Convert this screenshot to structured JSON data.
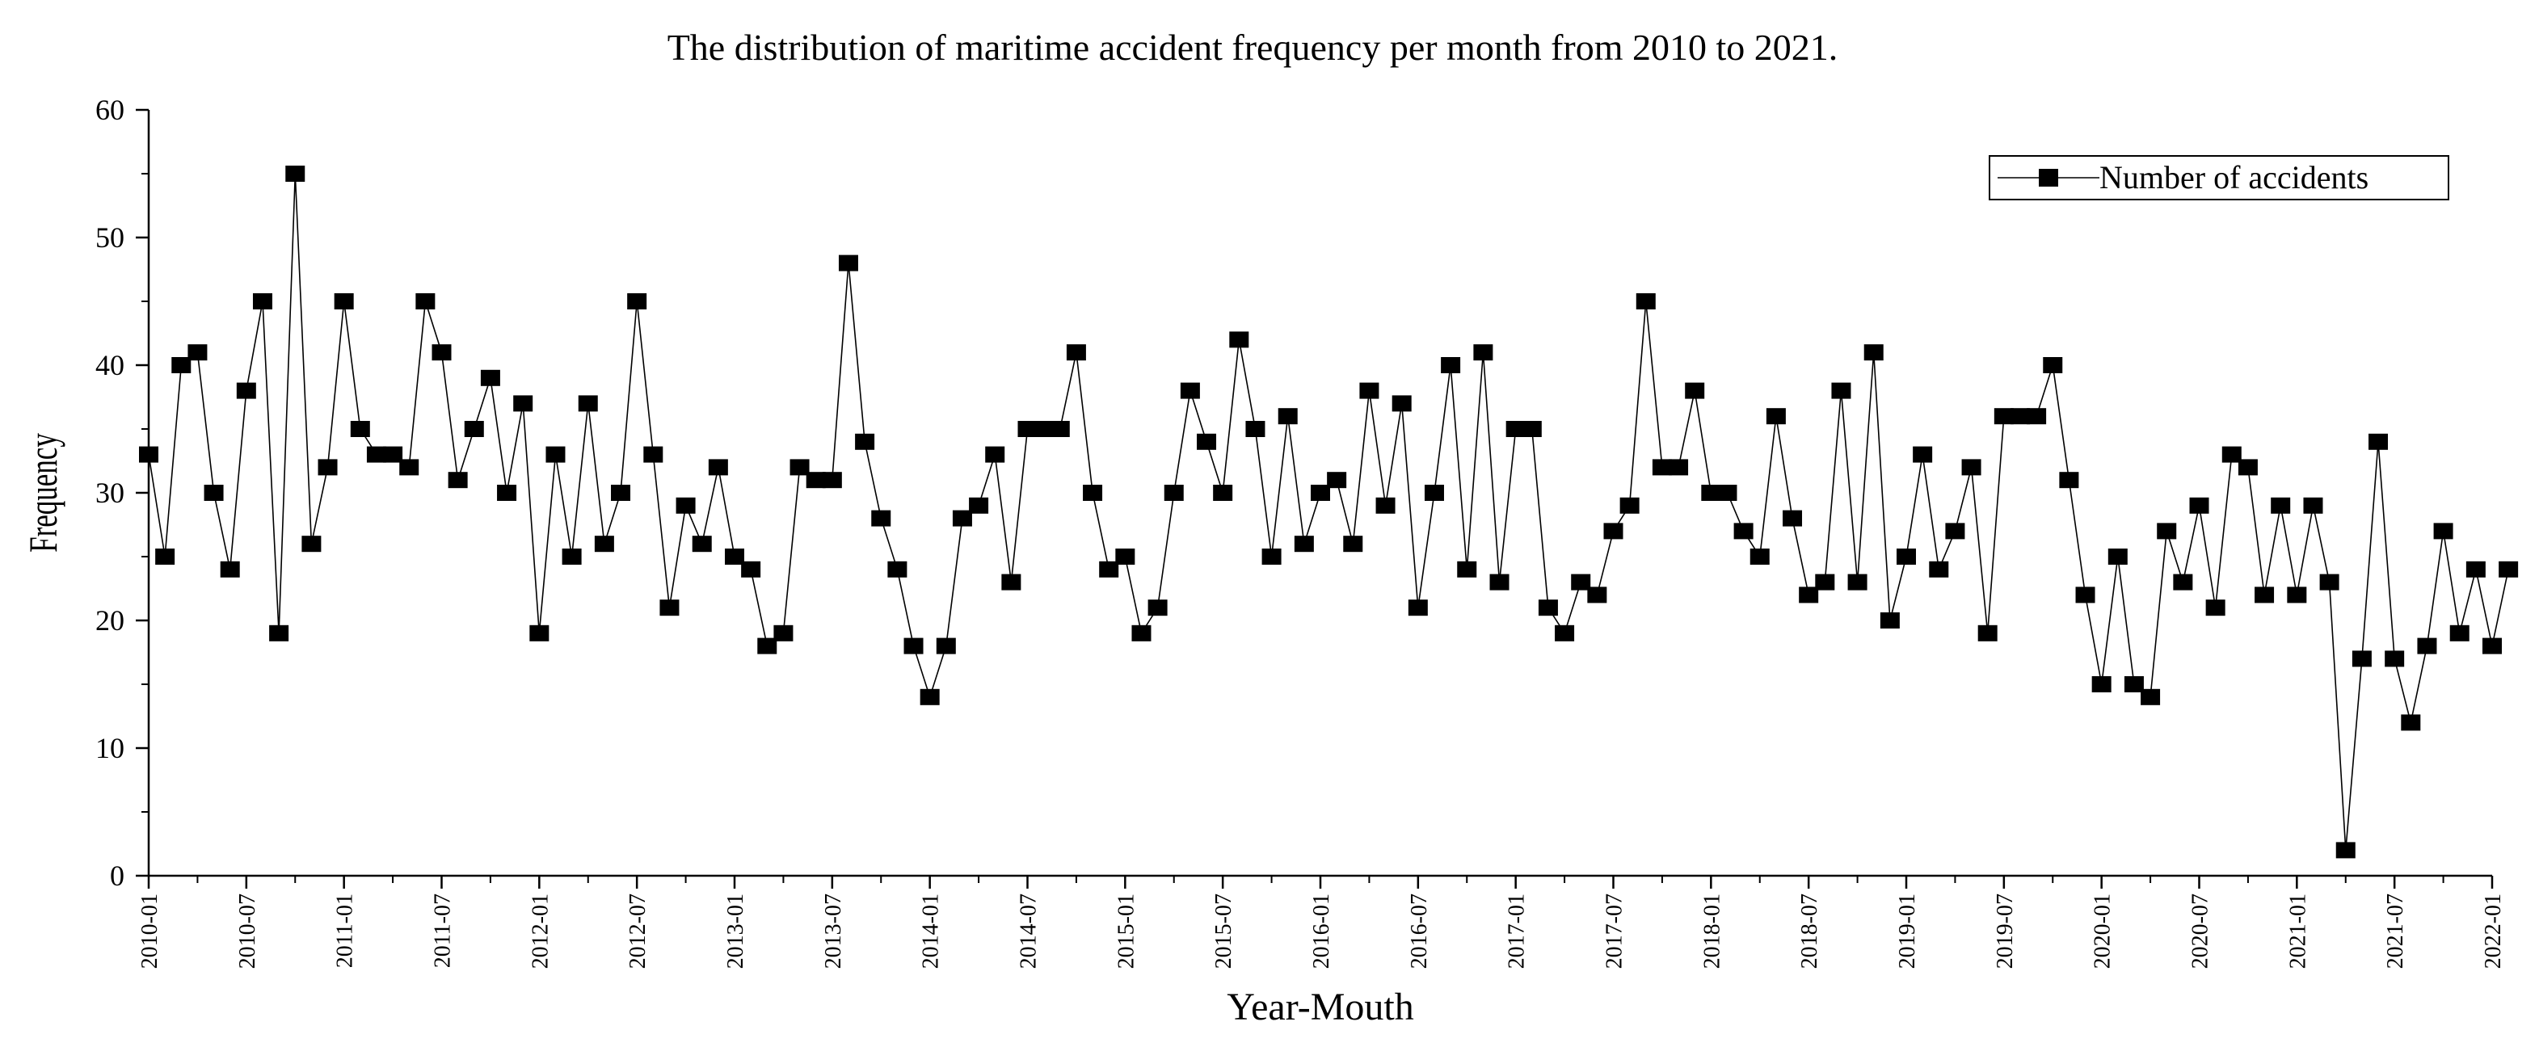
{
  "chart_data": {
    "type": "line",
    "title": "The distribution of maritime accident frequency per month from 2010 to 2021.",
    "xlabel": "Year-Mouth",
    "ylabel": "Frequency",
    "ylim": [
      0,
      60
    ],
    "yticks": [
      0,
      10,
      20,
      30,
      40,
      50,
      60
    ],
    "xticks": [
      "2010-01",
      "2010-07",
      "2011-01",
      "2011-07",
      "2012-01",
      "2012-07",
      "2013-01",
      "2013-07",
      "2014-01",
      "2014-07",
      "2015-01",
      "2015-07",
      "2016-01",
      "2016-07",
      "2017-01",
      "2017-07",
      "2018-01",
      "2018-07",
      "2019-01",
      "2019-07",
      "2020-01",
      "2020-07",
      "2021-01",
      "2021-07",
      "2022-01"
    ],
    "grid": false,
    "legend_position": "top-right",
    "series": [
      {
        "name": "Number of accidents",
        "marker": "square",
        "color": "#000000",
        "values": [
          33,
          25,
          40,
          41,
          30,
          24,
          38,
          45,
          19,
          55,
          26,
          32,
          45,
          35,
          33,
          33,
          32,
          45,
          41,
          31,
          35,
          39,
          30,
          37,
          19,
          33,
          25,
          37,
          26,
          30,
          45,
          33,
          21,
          29,
          26,
          32,
          25,
          24,
          18,
          19,
          32,
          31,
          31,
          48,
          34,
          28,
          24,
          18,
          14,
          18,
          28,
          29,
          33,
          23,
          35,
          35,
          35,
          41,
          30,
          24,
          25,
          19,
          21,
          30,
          38,
          34,
          30,
          42,
          35,
          25,
          36,
          26,
          30,
          31,
          26,
          38,
          29,
          37,
          21,
          30,
          40,
          24,
          41,
          23,
          35,
          35,
          21,
          19,
          23,
          22,
          27,
          29,
          45,
          32,
          32,
          38,
          30,
          30,
          27,
          25,
          36,
          28,
          22,
          23,
          38,
          23,
          41,
          20,
          25,
          33,
          24,
          27,
          32,
          19,
          36,
          36,
          36,
          40,
          31,
          22,
          15,
          25,
          15,
          14,
          27,
          23,
          29,
          21,
          33,
          32,
          22,
          29,
          22,
          29,
          23,
          2,
          17,
          34,
          17,
          12,
          18,
          27,
          19,
          24,
          18,
          24
        ]
      }
    ]
  }
}
